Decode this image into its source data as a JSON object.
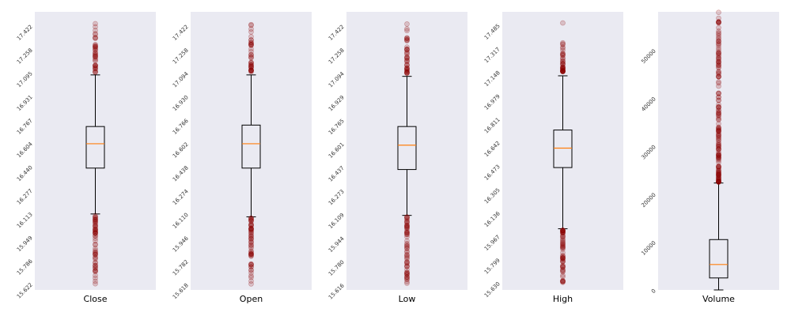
{
  "chart_data": [
    {
      "type": "box",
      "xlabel": "Close",
      "yticks": [
        "15.622",
        "15.786",
        "15.949",
        "16.113",
        "16.277",
        "16.440",
        "16.604",
        "16.767",
        "16.931",
        "17.095",
        "17.258",
        "17.422"
      ],
      "ylim": [
        15.58,
        17.52
      ],
      "box": {
        "whisker_low": 16.11,
        "q1": 16.43,
        "median": 16.6,
        "q3": 16.72,
        "whisker_high": 17.08
      },
      "fliers_low_range": [
        15.62,
        16.1
      ],
      "fliers_high_range": [
        17.1,
        17.44
      ],
      "colors": {
        "median": "#ff7f0e",
        "flier": "#8b0000"
      }
    },
    {
      "type": "box",
      "xlabel": "Open",
      "yticks": [
        "15.618",
        "15.782",
        "15.946",
        "16.110",
        "16.274",
        "16.438",
        "16.602",
        "16.766",
        "16.930",
        "17.094",
        "17.258",
        "17.422"
      ],
      "ylim": [
        15.58,
        17.52
      ],
      "box": {
        "whisker_low": 16.09,
        "q1": 16.43,
        "median": 16.6,
        "q3": 16.73,
        "whisker_high": 17.08
      },
      "fliers_low_range": [
        15.62,
        16.08
      ],
      "fliers_high_range": [
        17.1,
        17.44
      ],
      "colors": {
        "median": "#ff7f0e",
        "flier": "#8b0000"
      }
    },
    {
      "type": "box",
      "xlabel": "Low",
      "yticks": [
        "15.616",
        "15.780",
        "15.944",
        "16.109",
        "16.273",
        "16.437",
        "16.601",
        "16.765",
        "16.929",
        "17.094",
        "17.258",
        "17.422"
      ],
      "ylim": [
        15.58,
        17.52
      ],
      "box": {
        "whisker_low": 16.1,
        "q1": 16.42,
        "median": 16.59,
        "q3": 16.72,
        "whisker_high": 17.07
      },
      "fliers_low_range": [
        15.62,
        16.09
      ],
      "fliers_high_range": [
        17.09,
        17.44
      ],
      "colors": {
        "median": "#ff7f0e",
        "flier": "#8b0000"
      }
    },
    {
      "type": "box",
      "xlabel": "High",
      "yticks": [
        "15.630",
        "15.799",
        "15.967",
        "16.136",
        "16.305",
        "16.473",
        "16.642",
        "16.811",
        "16.979",
        "17.148",
        "17.317",
        "17.485"
      ],
      "ylim": [
        15.58,
        17.58
      ],
      "box": {
        "whisker_low": 16.02,
        "q1": 16.46,
        "median": 16.6,
        "q3": 16.73,
        "whisker_high": 17.12
      },
      "fliers_low_range": [
        15.63,
        16.01
      ],
      "fliers_high_range": [
        17.15,
        17.38
      ],
      "fliers_high_outlier": 17.5,
      "colors": {
        "median": "#ff7f0e",
        "flier": "#8b0000"
      }
    },
    {
      "type": "box",
      "xlabel": "Volume",
      "yticks": [
        "0",
        "10000",
        "20000",
        "30000",
        "40000",
        "50000"
      ],
      "ylim": [
        0,
        58000
      ],
      "box": {
        "whisker_low": 0,
        "q1": 2500,
        "median": 5300,
        "q3": 10500,
        "whisker_high": 22300
      },
      "fliers_high_range": [
        22500,
        58000
      ],
      "colors": {
        "median": "#ff7f0e",
        "flier": "#8b0000"
      }
    }
  ]
}
